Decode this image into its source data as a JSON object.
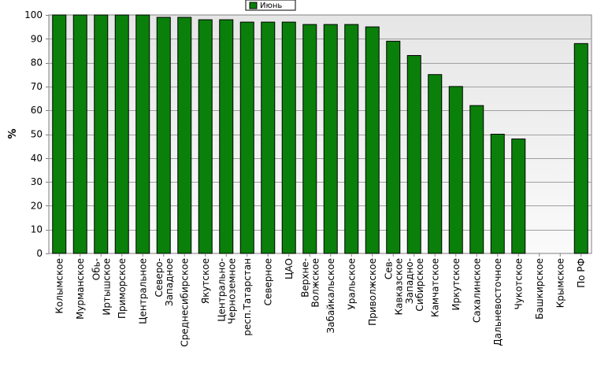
{
  "chart_data": {
    "type": "bar",
    "title": "",
    "xlabel": "",
    "ylabel": "%",
    "ylim": [
      0,
      100
    ],
    "yticks": [
      0,
      10,
      20,
      30,
      40,
      50,
      60,
      70,
      80,
      90,
      100
    ],
    "grid": true,
    "legend": "top-center",
    "categories": [
      "Колымское",
      "Мурманское",
      "Обь-Иртышское",
      "Приморское",
      "Центральное",
      "Северо-Западное",
      "Среднесибирское",
      "Якутское",
      "Центрально-Черноземное",
      "респ.Татарстан",
      "Северное",
      "ЦАО",
      "Верхне-Волжское",
      "Забайкальское",
      "Уральское",
      "Приволжское",
      "Сев-Кавказское",
      "Западно-Сибирское",
      "Камчатское",
      "Иркутское",
      "Сахалинское",
      "Дальневосточное",
      "Чукотское",
      "Башкирское",
      "Крымское",
      "По РФ"
    ],
    "series": [
      {
        "name": "Июнь",
        "color": "#0a800a",
        "values": [
          100,
          100,
          100,
          100,
          100,
          99,
          99,
          98,
          98,
          97,
          97,
          97,
          96,
          96,
          96,
          95,
          89,
          83,
          75,
          70,
          62,
          50,
          48,
          0,
          0,
          88
        ]
      }
    ]
  }
}
